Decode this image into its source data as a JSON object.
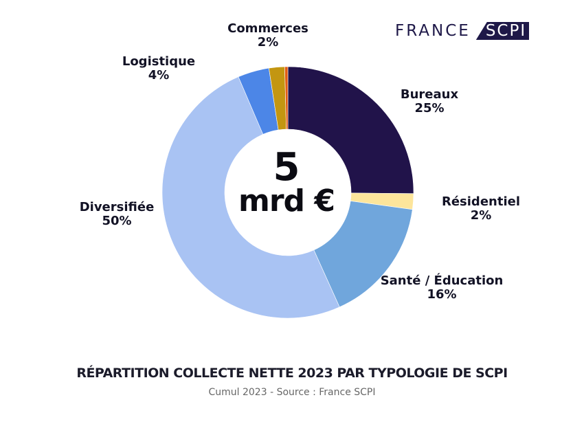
{
  "brand": {
    "word1": "FRANCE",
    "word2": "SCPI",
    "color": "#1e1848"
  },
  "center": {
    "line1": "5",
    "line2": "mrd €"
  },
  "footer": {
    "title": "RÉPARTITION COLLECTE NETTE 2023 PAR TYPOLOGIE DE SCPI",
    "subtitle": "Cumul 2023 - Source : France SCPI"
  },
  "chart_data": {
    "type": "pie",
    "donut": true,
    "title": "RÉPARTITION COLLECTE NETTE 2023 PAR TYPOLOGIE DE SCPI",
    "legend": "none",
    "slices": [
      {
        "name": "Bureaux",
        "value": 25,
        "label": "25%",
        "color": "#21134a"
      },
      {
        "name": "Résidentiel",
        "value": 2,
        "label": "2%",
        "color": "#fde59b"
      },
      {
        "name": "Santé / Éducation",
        "value": 16,
        "label": "16%",
        "color": "#70a6dc"
      },
      {
        "name": "Diversifiée",
        "value": 50,
        "label": "50%",
        "color": "#a9c3f3"
      },
      {
        "name": "Logistique",
        "value": 4,
        "label": "4%",
        "color": "#4c86e7"
      },
      {
        "name": "Commerces",
        "value": 2,
        "label": "2%",
        "color": "#c39611"
      },
      {
        "name": "",
        "value": 0.4,
        "label": "",
        "color": "#e25c12"
      }
    ]
  }
}
